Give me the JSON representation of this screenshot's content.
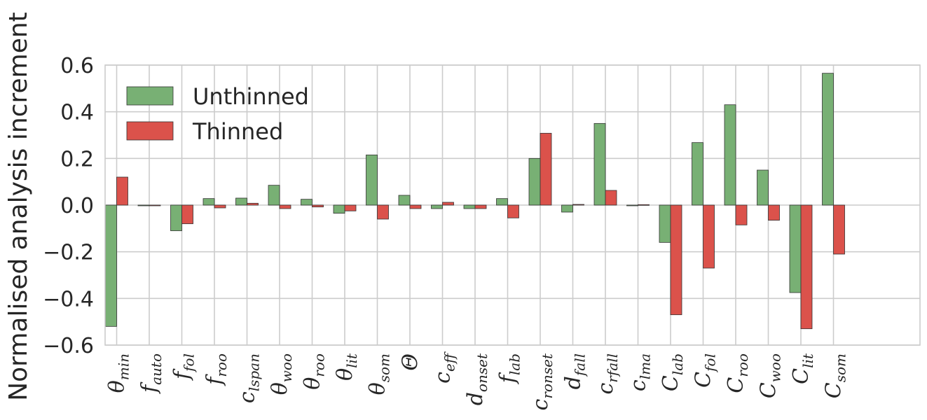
{
  "chart_data": {
    "type": "bar",
    "ylabel": "Normalised analysis increment",
    "xlabel": "",
    "title": "",
    "ylim": [
      -0.6,
      0.6
    ],
    "yticks": [
      -0.6,
      -0.4,
      -0.2,
      0.0,
      0.2,
      0.4,
      0.6
    ],
    "ytick_labels": [
      "−0.6",
      "−0.4",
      "−0.2",
      "0.0",
      "0.2",
      "0.4",
      "0.6"
    ],
    "grid": true,
    "legend_position": "top-left",
    "categories": [
      {
        "base": "θ",
        "sub": "min"
      },
      {
        "base": "f",
        "sub": "auto"
      },
      {
        "base": "f",
        "sub": "fol"
      },
      {
        "base": "f",
        "sub": "roo"
      },
      {
        "base": "c",
        "sub": "lspan"
      },
      {
        "base": "θ",
        "sub": "woo"
      },
      {
        "base": "θ",
        "sub": "roo"
      },
      {
        "base": "θ",
        "sub": "lit"
      },
      {
        "base": "θ",
        "sub": "som"
      },
      {
        "base": "Θ",
        "sub": ""
      },
      {
        "base": "c",
        "sub": "eff"
      },
      {
        "base": "d",
        "sub": "onset"
      },
      {
        "base": "f",
        "sub": "lab"
      },
      {
        "base": "c",
        "sub": "ronset"
      },
      {
        "base": "d",
        "sub": "fall"
      },
      {
        "base": "c",
        "sub": "rfall"
      },
      {
        "base": "c",
        "sub": "lma"
      },
      {
        "base": "C",
        "sub": "lab"
      },
      {
        "base": "C",
        "sub": "fol"
      },
      {
        "base": "C",
        "sub": "roo"
      },
      {
        "base": "C",
        "sub": "woo"
      },
      {
        "base": "C",
        "sub": "lit"
      },
      {
        "base": "C",
        "sub": "som"
      }
    ],
    "series": [
      {
        "name": "Unthinned",
        "color": "#78b074",
        "values": [
          -0.52,
          -0.003,
          -0.11,
          0.028,
          0.03,
          0.085,
          0.025,
          -0.035,
          0.215,
          0.042,
          -0.015,
          -0.015,
          0.028,
          0.2,
          -0.03,
          0.35,
          -0.002,
          -0.16,
          0.268,
          0.43,
          0.15,
          -0.375,
          0.565
        ]
      },
      {
        "name": "Thinned",
        "color": "#db524b",
        "values": [
          0.12,
          -0.003,
          -0.08,
          -0.012,
          0.008,
          -0.015,
          -0.008,
          -0.025,
          -0.06,
          -0.015,
          0.012,
          -0.015,
          -0.055,
          0.308,
          0.003,
          0.063,
          0.002,
          -0.47,
          -0.27,
          -0.085,
          -0.065,
          -0.53,
          -0.21
        ]
      }
    ]
  }
}
